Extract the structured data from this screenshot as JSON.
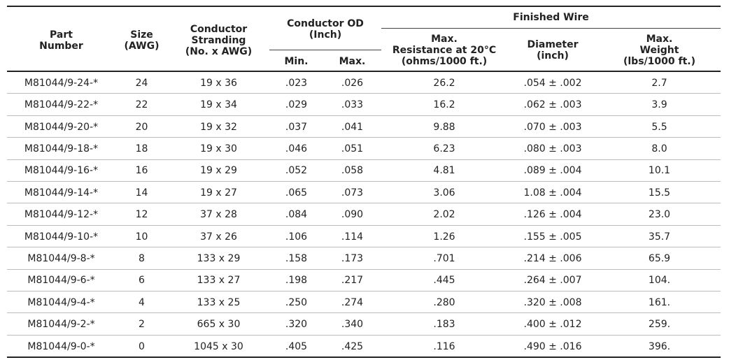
{
  "header": {
    "groups": [
      [
        "Conductor OD",
        "(Inch)"
      ],
      [
        "Finished Wire"
      ]
    ],
    "columns": [
      [
        "Part",
        "Number"
      ],
      [
        "Size",
        "(AWG)"
      ],
      [
        "Conductor",
        "Stranding",
        "(No. x AWG)"
      ],
      [
        "Min."
      ],
      [
        "Max."
      ],
      [
        "Max.",
        "Resistance at 20°C",
        "(ohms/1000 ft.)"
      ],
      [
        "Diameter",
        "(inch)"
      ],
      [
        "Max.",
        "Weight",
        "(lbs/1000 ft.)"
      ]
    ]
  },
  "rows": [
    [
      "M81044/9-24-*",
      "24",
      "19 x 36",
      ".023",
      ".026",
      "26.2",
      ".054 ± .002",
      "2.7"
    ],
    [
      "M81044/9-22-*",
      "22",
      "19 x 34",
      ".029",
      ".033",
      "16.2",
      ".062 ± .003",
      "3.9"
    ],
    [
      "M81044/9-20-*",
      "20",
      "19 x 32",
      ".037",
      ".041",
      "9.88",
      ".070 ± .003",
      "5.5"
    ],
    [
      "M81044/9-18-*",
      "18",
      "19 x 30",
      ".046",
      ".051",
      "6.23",
      ".080 ± .003",
      "8.0"
    ],
    [
      "M81044/9-16-*",
      "16",
      "19 x 29",
      ".052",
      ".058",
      "4.81",
      ".089 ± .004",
      "10.1"
    ],
    [
      "M81044/9-14-*",
      "14",
      "19 x 27",
      ".065",
      ".073",
      "3.06",
      "1.08 ± .004",
      "15.5"
    ],
    [
      "M81044/9-12-*",
      "12",
      "37 x 28",
      ".084",
      ".090",
      "2.02",
      ".126 ± .004",
      "23.0"
    ],
    [
      "M81044/9-10-*",
      "10",
      "37 x 26",
      ".106",
      ".114",
      "1.26",
      ".155 ± .005",
      "35.7"
    ],
    [
      "M81044/9-8-*",
      "8",
      "133 x 29",
      ".158",
      ".173",
      ".701",
      ".214 ± .006",
      "65.9"
    ],
    [
      "M81044/9-6-*",
      "6",
      "133 x 27",
      ".198",
      ".217",
      ".445",
      ".264 ± .007",
      "104."
    ],
    [
      "M81044/9-4-*",
      "4",
      "133 x 25",
      ".250",
      ".274",
      ".280",
      ".320 ± .008",
      "161."
    ],
    [
      "M81044/9-2-*",
      "2",
      "665 x 30",
      ".320",
      ".340",
      ".183",
      ".400 ± .012",
      "259."
    ],
    [
      "M81044/9-0-*",
      "0",
      "1045 x 30",
      ".405",
      ".425",
      ".116",
      ".490 ± .016",
      "396."
    ]
  ]
}
